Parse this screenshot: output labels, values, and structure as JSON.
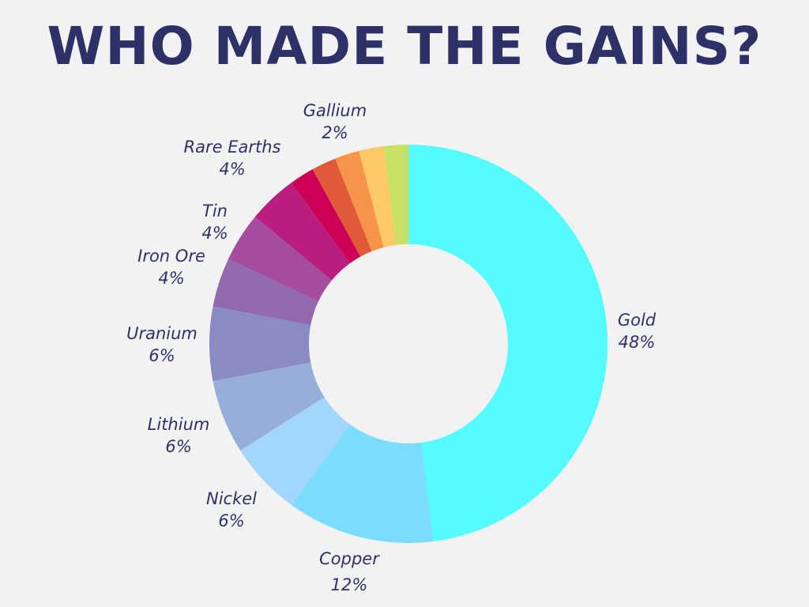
{
  "title": "WHO MADE THE GAINS?",
  "chart_data": {
    "type": "pie",
    "title": "WHO MADE THE GAINS?",
    "categories": [
      "Gold",
      "Copper",
      "Nickel",
      "Lithium",
      "Uranium",
      "Iron Ore",
      "Tin",
      "Rare Earths",
      "",
      "",
      "",
      "",
      "Gallium"
    ],
    "values": [
      48,
      12,
      6,
      6,
      6,
      4,
      4,
      4,
      2,
      2,
      2,
      2,
      2
    ],
    "labels": [
      "Gold",
      "Copper",
      "Nickel",
      "Lithium",
      "Uranium",
      "Iron Ore",
      "Tin",
      "Rare Earths",
      "",
      "",
      "",
      "",
      "Gallium"
    ],
    "value_labels": [
      "48%",
      "12%",
      "6%",
      "6%",
      "6%",
      "4%",
      "4%",
      "4%",
      "",
      "",
      "",
      "",
      "2%"
    ],
    "colors": [
      "#55fbff",
      "#7adcff",
      "#a2d7fb",
      "#96aed8",
      "#8a8bc3",
      "#936ab0",
      "#a54c9f",
      "#b91d7f",
      "#cc0055",
      "#e05a3a",
      "#f79449",
      "#fdc966",
      "#c6e163"
    ],
    "donut": true,
    "legend": "none"
  }
}
